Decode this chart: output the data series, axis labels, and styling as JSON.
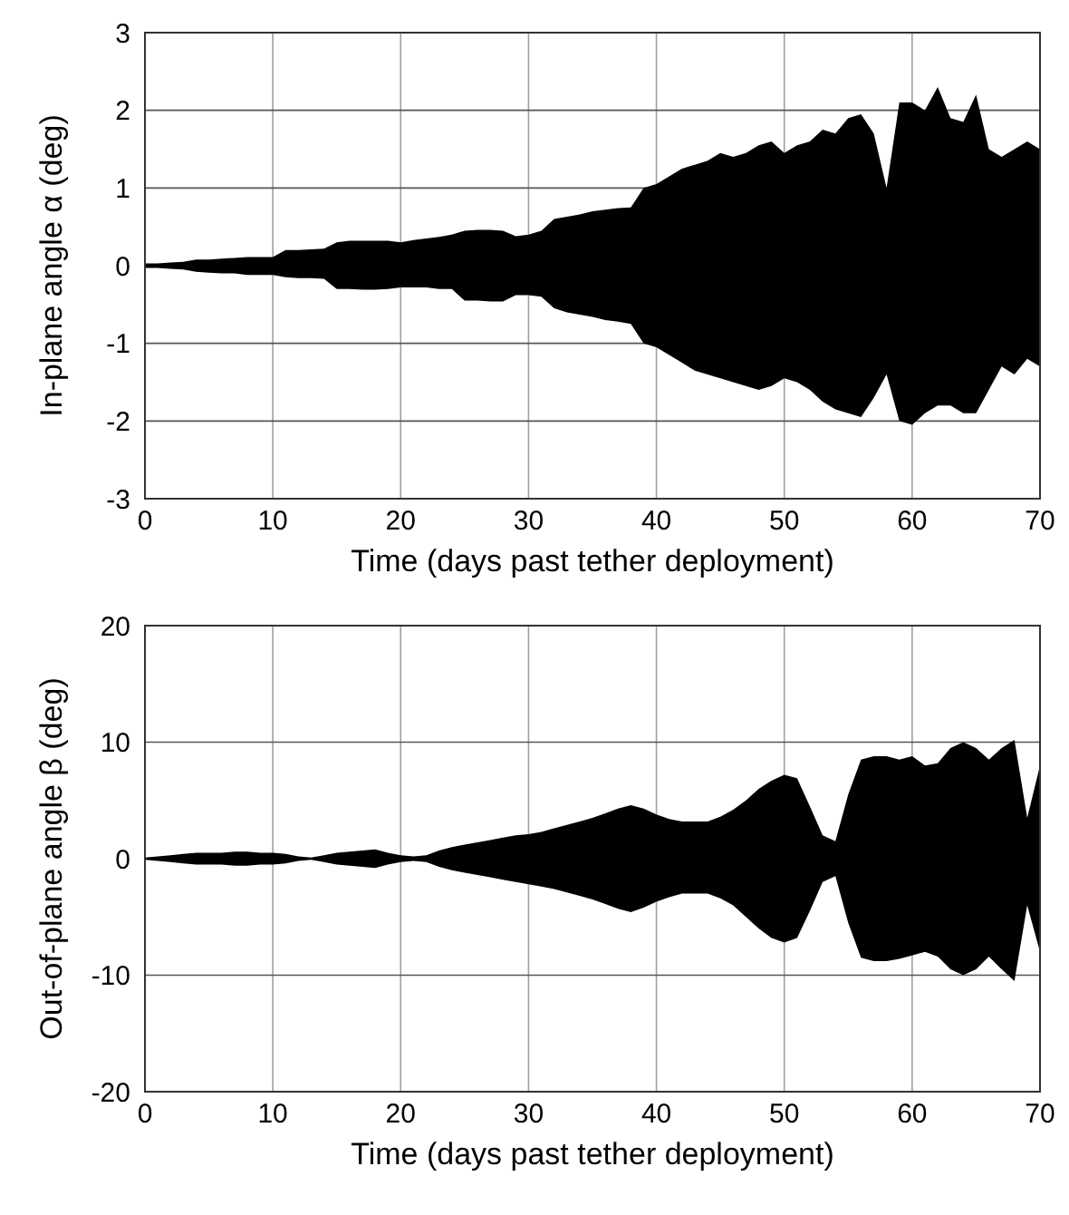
{
  "chart_data": [
    {
      "type": "area",
      "xlabel": "Time (days past tether deployment)",
      "ylabel": "In-plane angle α  (deg)",
      "xlim": [
        0,
        70
      ],
      "xticks": [
        0,
        10,
        20,
        30,
        40,
        50,
        60,
        70
      ],
      "ylim": [
        -3,
        3
      ],
      "yticks": [
        -3,
        -2,
        -1,
        0,
        1,
        2,
        3
      ],
      "grid": true,
      "x": [
        0,
        1,
        2,
        3,
        4,
        5,
        6,
        7,
        8,
        9,
        10,
        11,
        12,
        13,
        14,
        15,
        16,
        17,
        18,
        19,
        20,
        21,
        22,
        23,
        24,
        25,
        26,
        27,
        28,
        29,
        30,
        31,
        32,
        33,
        34,
        35,
        36,
        37,
        38,
        39,
        40,
        41,
        42,
        43,
        44,
        45,
        46,
        47,
        48,
        49,
        50,
        51,
        52,
        53,
        54,
        55,
        56,
        57,
        58,
        59,
        60,
        61,
        62,
        63,
        64,
        65,
        66,
        67,
        68,
        69,
        70
      ],
      "series": [
        {
          "color": "#000000",
          "values": [
            0.03,
            0.03,
            0.04,
            0.05,
            0.08,
            0.08,
            0.09,
            0.1,
            0.11,
            0.11,
            0.11,
            0.2,
            0.2,
            0.21,
            0.22,
            0.3,
            0.32,
            0.32,
            0.32,
            0.32,
            0.3,
            0.33,
            0.35,
            0.37,
            0.4,
            0.45,
            0.46,
            0.46,
            0.45,
            0.38,
            0.4,
            0.45,
            0.6,
            0.63,
            0.66,
            0.7,
            0.72,
            0.74,
            0.75,
            1.0,
            1.05,
            1.15,
            1.25,
            1.3,
            1.35,
            1.45,
            1.4,
            1.45,
            1.55,
            1.6,
            1.45,
            1.55,
            1.6,
            1.75,
            1.7,
            1.9,
            1.95,
            1.7,
            1.0,
            2.1,
            2.1,
            2.0,
            2.3,
            1.9,
            1.85,
            2.2,
            1.5,
            1.4,
            1.5,
            1.6,
            1.5
          ]
        },
        {
          "color": "#000000",
          "values": [
            -0.03,
            -0.03,
            -0.04,
            -0.05,
            -0.08,
            -0.09,
            -0.1,
            -0.1,
            -0.12,
            -0.12,
            -0.12,
            -0.15,
            -0.16,
            -0.16,
            -0.17,
            -0.3,
            -0.3,
            -0.31,
            -0.31,
            -0.3,
            -0.28,
            -0.28,
            -0.28,
            -0.3,
            -0.3,
            -0.45,
            -0.45,
            -0.46,
            -0.46,
            -0.38,
            -0.38,
            -0.4,
            -0.55,
            -0.6,
            -0.63,
            -0.66,
            -0.7,
            -0.72,
            -0.75,
            -1.0,
            -1.05,
            -1.15,
            -1.25,
            -1.35,
            -1.4,
            -1.45,
            -1.5,
            -1.55,
            -1.6,
            -1.55,
            -1.45,
            -1.5,
            -1.6,
            -1.75,
            -1.85,
            -1.9,
            -1.95,
            -1.7,
            -1.4,
            -2.0,
            -2.05,
            -1.9,
            -1.8,
            -1.8,
            -1.9,
            -1.9,
            -1.6,
            -1.3,
            -1.4,
            -1.2,
            -1.3
          ]
        }
      ]
    },
    {
      "type": "area",
      "xlabel": "Time (days past tether deployment)",
      "ylabel": "Out-of-plane angle β  (deg)",
      "xlim": [
        0,
        70
      ],
      "xticks": [
        0,
        10,
        20,
        30,
        40,
        50,
        60,
        70
      ],
      "ylim": [
        -20,
        20
      ],
      "yticks": [
        -20,
        -10,
        0,
        10,
        20
      ],
      "grid": true,
      "x": [
        0,
        1,
        2,
        3,
        4,
        5,
        6,
        7,
        8,
        9,
        10,
        11,
        12,
        13,
        14,
        15,
        16,
        17,
        18,
        19,
        20,
        21,
        22,
        23,
        24,
        25,
        26,
        27,
        28,
        29,
        30,
        31,
        32,
        33,
        34,
        35,
        36,
        37,
        38,
        39,
        40,
        41,
        42,
        43,
        44,
        45,
        46,
        47,
        48,
        49,
        50,
        51,
        52,
        53,
        54,
        55,
        56,
        57,
        58,
        59,
        60,
        61,
        62,
        63,
        64,
        65,
        66,
        67,
        68,
        69,
        70
      ],
      "series": [
        {
          "color": "#000000",
          "values": [
            0.1,
            0.2,
            0.3,
            0.4,
            0.5,
            0.5,
            0.5,
            0.6,
            0.6,
            0.5,
            0.5,
            0.4,
            0.2,
            0.1,
            0.3,
            0.5,
            0.6,
            0.7,
            0.8,
            0.5,
            0.3,
            0.2,
            0.3,
            0.7,
            1.0,
            1.2,
            1.4,
            1.6,
            1.8,
            2.0,
            2.1,
            2.3,
            2.6,
            2.9,
            3.2,
            3.5,
            3.9,
            4.3,
            4.6,
            4.3,
            3.8,
            3.4,
            3.2,
            3.2,
            3.2,
            3.6,
            4.2,
            5.0,
            6.0,
            6.7,
            7.2,
            6.9,
            4.5,
            2.0,
            1.5,
            5.5,
            8.5,
            8.8,
            8.8,
            8.5,
            8.8,
            8.0,
            8.2,
            9.5,
            10.0,
            9.5,
            8.5,
            9.5,
            10.2,
            3.5,
            8.0
          ]
        },
        {
          "color": "#000000",
          "values": [
            -0.1,
            -0.2,
            -0.3,
            -0.4,
            -0.5,
            -0.5,
            -0.5,
            -0.6,
            -0.6,
            -0.5,
            -0.5,
            -0.4,
            -0.2,
            -0.1,
            -0.3,
            -0.5,
            -0.6,
            -0.7,
            -0.8,
            -0.5,
            -0.3,
            -0.2,
            -0.3,
            -0.7,
            -1.0,
            -1.2,
            -1.4,
            -1.6,
            -1.8,
            -2.0,
            -2.2,
            -2.4,
            -2.6,
            -2.9,
            -3.2,
            -3.5,
            -3.9,
            -4.3,
            -4.6,
            -4.2,
            -3.7,
            -3.3,
            -3.0,
            -3.0,
            -3.0,
            -3.4,
            -4.0,
            -5.0,
            -6.0,
            -6.8,
            -7.2,
            -6.8,
            -4.5,
            -2.0,
            -1.5,
            -5.5,
            -8.5,
            -8.8,
            -8.8,
            -8.6,
            -8.3,
            -8.0,
            -8.4,
            -9.5,
            -10.0,
            -9.5,
            -8.4,
            -9.5,
            -10.5,
            -4.0,
            -8.0
          ]
        }
      ]
    }
  ]
}
